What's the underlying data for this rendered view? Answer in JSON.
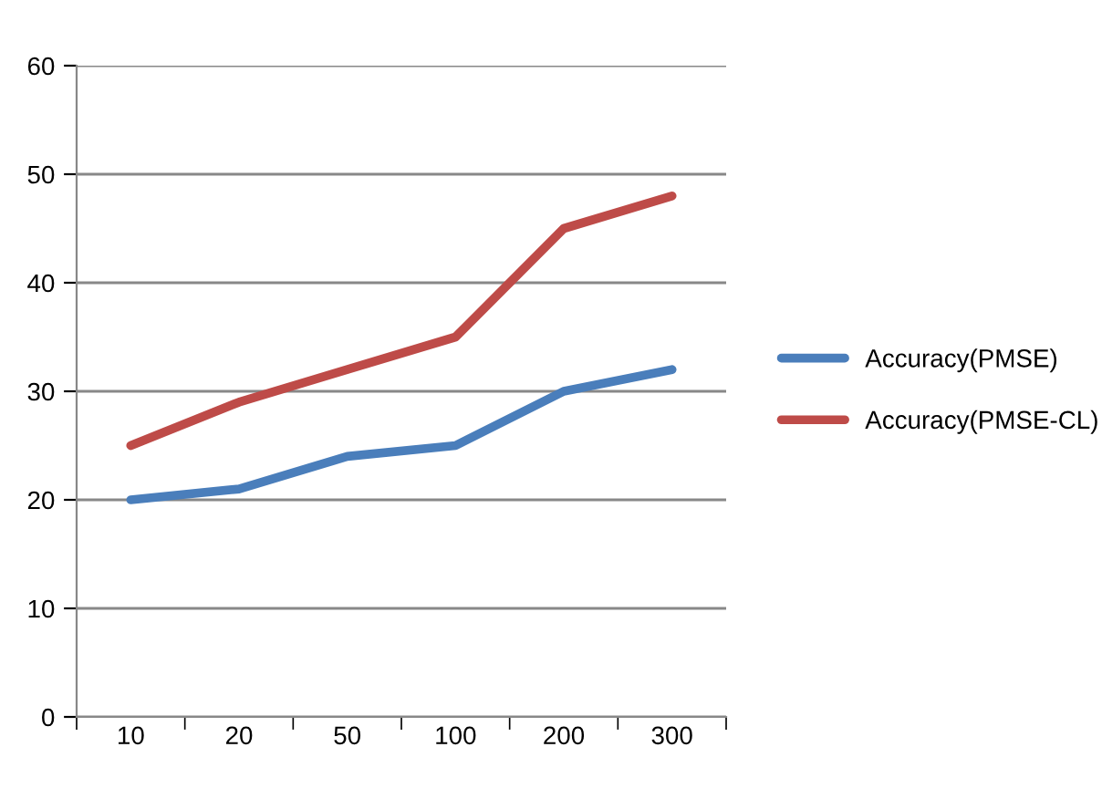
{
  "chart_data": {
    "type": "line",
    "categories": [
      "10",
      "20",
      "50",
      "100",
      "200",
      "300"
    ],
    "series": [
      {
        "name": "Accuracy(PMSE)",
        "color": "#4a7ebb",
        "values": [
          20,
          21,
          24,
          25,
          30,
          32
        ]
      },
      {
        "name": "Accuracy(PMSE-CL)",
        "color": "#be4b48",
        "values": [
          25,
          29,
          32,
          35,
          45,
          48
        ]
      }
    ],
    "ylim": [
      0,
      60
    ],
    "yticks": [
      0,
      10,
      20,
      30,
      40,
      50,
      60
    ],
    "grid": "y",
    "legend": "right",
    "marker": "none",
    "line_style": "solid"
  }
}
